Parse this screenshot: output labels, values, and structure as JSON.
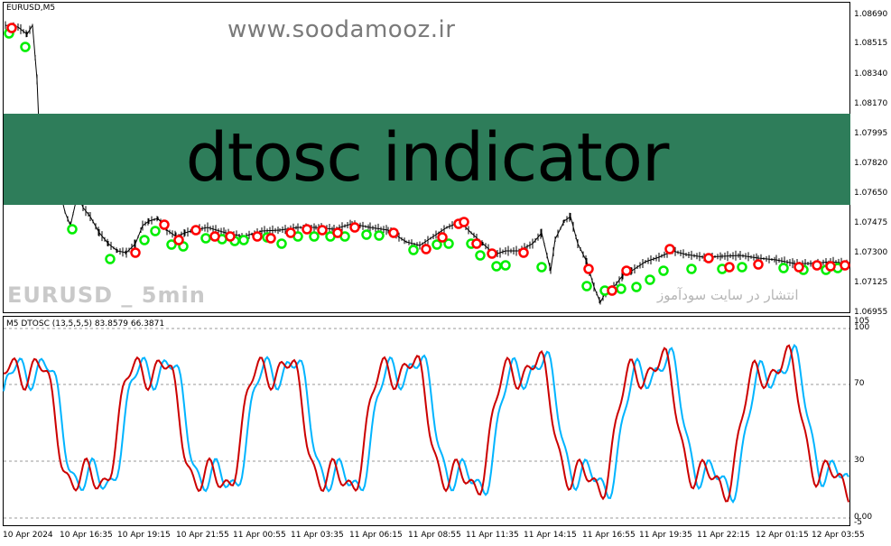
{
  "price_chart": {
    "symbol_label": "EURUSD,M5",
    "watermark": "www.soodamooz.ir",
    "banner_text": "dtosc indicator",
    "bottom_watermark": "EURUSD _ 5min",
    "persian_watermark": "انتشار در سایت سودآموز",
    "price_axis": [
      "1.08690",
      "1.08515",
      "1.08340",
      "1.08170",
      "1.07995",
      "1.07820",
      "1.07650",
      "1.07475",
      "1.07300",
      "1.07125",
      "1.06955"
    ],
    "colors": {
      "buy_marker": "#00ff00",
      "sell_marker": "#ff0000",
      "banner": "#2e7d5a",
      "candle": "#000000"
    }
  },
  "oscillator": {
    "title": "M5 DTOSC (13,5,5,5) 83.8579 66.3871",
    "axis_labels": [
      "105",
      "100",
      "70",
      "30",
      "0.00",
      "-5"
    ],
    "colors": {
      "fast": "#00b4ff",
      "slow": "#cc0000"
    }
  },
  "time_axis": [
    "10 Apr 2024",
    "10 Apr 16:35",
    "10 Apr 19:15",
    "10 Apr 21:55",
    "11 Apr 00:55",
    "11 Apr 03:35",
    "11 Apr 06:15",
    "11 Apr 08:55",
    "11 Apr 11:35",
    "11 Apr 14:15",
    "11 Apr 16:55",
    "11 Apr 19:35",
    "11 Apr 22:15",
    "12 Apr 01:15",
    "12 Apr 03:55"
  ]
}
